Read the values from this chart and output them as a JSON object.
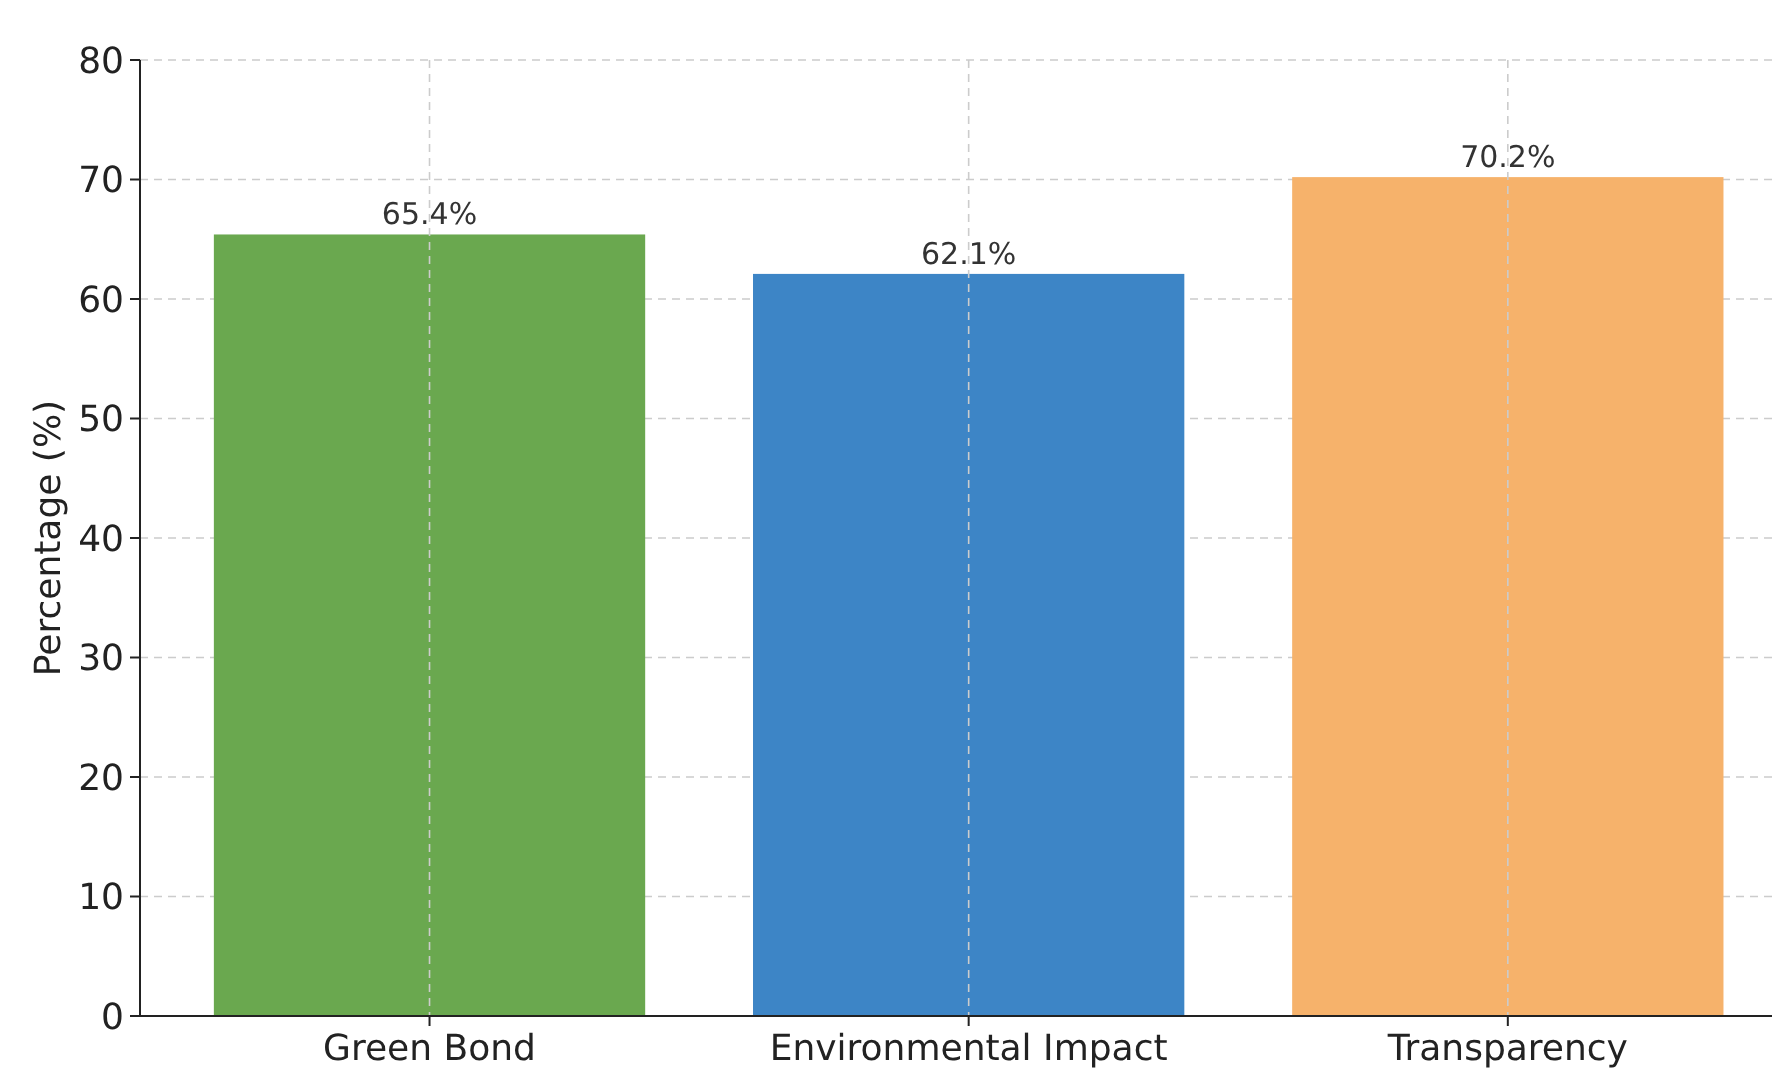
{
  "chart_data": {
    "type": "bar",
    "ylabel": "Percentage (%)",
    "categories": [
      "Green Bond",
      "Environmental Impact",
      "Transparency"
    ],
    "values": [
      65.4,
      62.1,
      70.2
    ],
    "colors": [
      "#6aa84f",
      "#3d85c6",
      "#f6b26b"
    ],
    "value_labels": [
      "65.4%",
      "62.1%",
      "70.2%"
    ],
    "ylim": [
      0,
      80
    ],
    "yticks": [
      0,
      10,
      20,
      30,
      40,
      50,
      60,
      70,
      80
    ],
    "grid": true
  }
}
